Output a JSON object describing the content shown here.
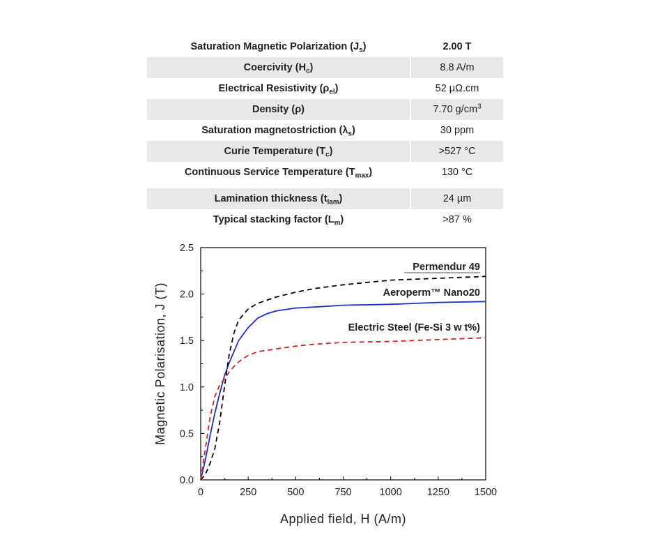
{
  "table": {
    "rows": [
      {
        "prop": "Saturation Magnetic Polarization (J",
        "sub": "s",
        "tail": ")",
        "value": "2.00 T"
      },
      {
        "prop": "Coercivity (H",
        "sub": "c",
        "tail": ")",
        "value": "8.8 A/m"
      },
      {
        "prop": "Electrical Resistivity (ρ",
        "sub": "el",
        "tail": ")",
        "value": "52 μΩ.cm"
      },
      {
        "prop": "Density (ρ)",
        "sub": "",
        "tail": "",
        "value": "7.70 g/cm",
        "value_sup": "3"
      },
      {
        "prop": "Saturation magnetostriction (λ",
        "sub": "s",
        "tail": ")",
        "value": "30 ppm"
      },
      {
        "prop": "Curie Temperature (T",
        "sub": "c",
        "tail": ")",
        "value": ">527 °C"
      },
      {
        "prop": "Continuous Service Temperature (T",
        "sub": "max",
        "tail": ")",
        "value": "130 °C"
      },
      {
        "prop": "Lamination thickness (t",
        "sub": "lam",
        "tail": ")",
        "value": "24 µm"
      },
      {
        "prop": "Typical stacking factor (L",
        "sub": "m",
        "tail": ")",
        "value": ">87 %"
      }
    ]
  },
  "chart_data": {
    "type": "line",
    "xlabel": "Applied field, H (A/m)",
    "ylabel": "Magnetic Polarisation, J (T)",
    "xlim": [
      0,
      1500
    ],
    "ylim": [
      0,
      2.5
    ],
    "xticks": [
      "0",
      "250",
      "500",
      "750",
      "1000",
      "1250",
      "1500"
    ],
    "yticks": [
      "0.0",
      "0.5",
      "1.0",
      "1.5",
      "2.0",
      "2.5"
    ],
    "grid": false,
    "series": [
      {
        "name": "Permendur 49",
        "color": "#000000",
        "style": "dashed",
        "x": [
          0,
          25,
          50,
          75,
          100,
          125,
          150,
          175,
          200,
          250,
          300,
          400,
          500,
          600,
          750,
          900,
          1000,
          1250,
          1500
        ],
        "y": [
          0,
          0.06,
          0.18,
          0.34,
          0.62,
          1.0,
          1.35,
          1.58,
          1.72,
          1.84,
          1.9,
          1.97,
          2.02,
          2.06,
          2.1,
          2.13,
          2.15,
          2.17,
          2.19
        ]
      },
      {
        "name": "Aeroperm™ Nano20",
        "color": "#1f2fbf",
        "style": "solid",
        "x": [
          0,
          25,
          50,
          75,
          100,
          125,
          150,
          175,
          200,
          250,
          300,
          350,
          400,
          500,
          600,
          750,
          1000,
          1250,
          1500
        ],
        "y": [
          0,
          0.22,
          0.48,
          0.72,
          0.93,
          1.12,
          1.26,
          1.38,
          1.5,
          1.64,
          1.74,
          1.79,
          1.82,
          1.85,
          1.86,
          1.88,
          1.89,
          1.91,
          1.92
        ]
      },
      {
        "name": "Electric Steel (Fe-Si 3 w t%)",
        "color": "#d42020",
        "style": "dashed",
        "x": [
          0,
          25,
          50,
          75,
          100,
          125,
          150,
          175,
          200,
          250,
          300,
          400,
          500,
          600,
          750,
          1000,
          1250,
          1500
        ],
        "y": [
          0,
          0.34,
          0.68,
          0.9,
          1.02,
          1.09,
          1.16,
          1.22,
          1.27,
          1.34,
          1.38,
          1.41,
          1.44,
          1.46,
          1.48,
          1.49,
          1.51,
          1.53
        ]
      }
    ]
  }
}
